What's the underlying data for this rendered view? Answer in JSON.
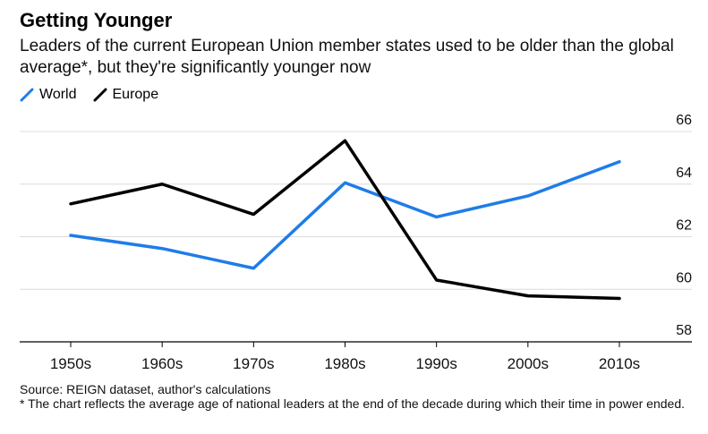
{
  "title": "Getting Younger",
  "subtitle": "Leaders of the current European Union member states used to be older than the global average*, but they're significantly younger now",
  "source": "Source: REIGN dataset, author's calculations",
  "footnote": "* The chart reflects the average age of national leaders at the end of the decade during which their time in power ended.",
  "chart_data": {
    "type": "line",
    "title": "Getting Younger",
    "x": [
      "1950s",
      "1960s",
      "1970s",
      "1980s",
      "1990s",
      "2000s",
      "2010s"
    ],
    "series": [
      {
        "name": "World",
        "color": "#1f7ce8",
        "values": [
          62.05,
          61.55,
          60.8,
          64.05,
          62.75,
          63.55,
          64.85
        ]
      },
      {
        "name": "Europe",
        "color": "#000000",
        "values": [
          63.25,
          64.0,
          62.85,
          65.65,
          60.35,
          59.75,
          59.65
        ]
      }
    ],
    "ylim": [
      58,
      66
    ],
    "yticks": [
      58,
      60,
      62,
      64,
      66
    ],
    "grid": true,
    "legend_position": "top-left",
    "y_axis_side": "right"
  }
}
